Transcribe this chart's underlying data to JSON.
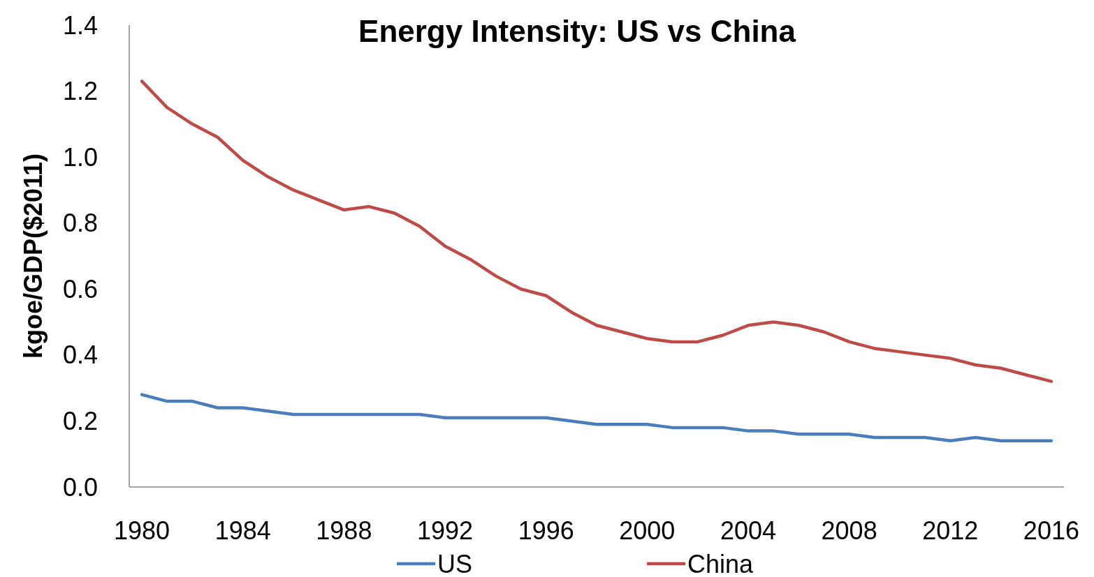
{
  "chart_data": {
    "type": "line",
    "title": "Energy Intensity: US vs China",
    "ylabel": "kgoe/GDP($2011)",
    "x": [
      1980,
      1981,
      1982,
      1983,
      1984,
      1985,
      1986,
      1987,
      1988,
      1989,
      1990,
      1991,
      1992,
      1993,
      1994,
      1995,
      1996,
      1997,
      1998,
      1999,
      2000,
      2001,
      2002,
      2003,
      2004,
      2005,
      2006,
      2007,
      2008,
      2009,
      2010,
      2011,
      2012,
      2013,
      2014,
      2015,
      2016
    ],
    "xlim": [
      1979.5,
      2016.5
    ],
    "xticks": [
      1980,
      1984,
      1988,
      1992,
      1996,
      2000,
      2004,
      2008,
      2012,
      2016
    ],
    "ylim": [
      0,
      1.4
    ],
    "yticks": [
      {
        "value": 0,
        "label": "0.0"
      },
      {
        "value": 0.2,
        "label": "0.2"
      },
      {
        "value": 0.4,
        "label": "0.4"
      },
      {
        "value": 0.6,
        "label": "0.6"
      },
      {
        "value": 0.8,
        "label": "0.8"
      },
      {
        "value": 1,
        "label": "1.0"
      },
      {
        "value": 1.2,
        "label": "1.2"
      },
      {
        "value": 1.4,
        "label": "1.4"
      }
    ],
    "series": [
      {
        "name": "US",
        "color": "#4a7ebb",
        "values": [
          0.28,
          0.26,
          0.26,
          0.24,
          0.24,
          0.23,
          0.22,
          0.22,
          0.22,
          0.22,
          0.22,
          0.22,
          0.21,
          0.21,
          0.21,
          0.21,
          0.21,
          0.2,
          0.19,
          0.19,
          0.19,
          0.18,
          0.18,
          0.18,
          0.17,
          0.17,
          0.16,
          0.16,
          0.16,
          0.15,
          0.15,
          0.15,
          0.14,
          0.15,
          0.14,
          0.14,
          0.14
        ]
      },
      {
        "name": "China",
        "color": "#be4b48",
        "values": [
          1.23,
          1.15,
          1.1,
          1.06,
          0.99,
          0.94,
          0.9,
          0.87,
          0.84,
          0.85,
          0.83,
          0.79,
          0.73,
          0.69,
          0.64,
          0.6,
          0.58,
          0.53,
          0.49,
          0.47,
          0.45,
          0.44,
          0.44,
          0.46,
          0.49,
          0.5,
          0.49,
          0.47,
          0.44,
          0.42,
          0.41,
          0.4,
          0.39,
          0.37,
          0.36,
          0.34,
          0.32
        ]
      }
    ],
    "legend": "bottom",
    "grid": false,
    "line_style": "solid",
    "marker": "none"
  }
}
